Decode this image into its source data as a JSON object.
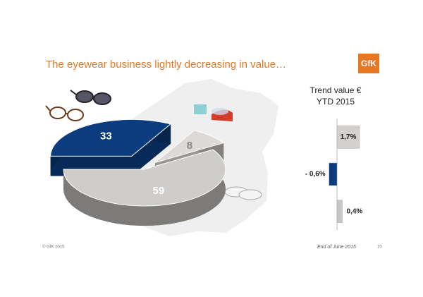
{
  "title": "The eyewear business lightly decreasing in value…",
  "logo": "GfK",
  "footer": {
    "copyright": "© GfK 2015",
    "date": "End of June 2015",
    "page": "10"
  },
  "chart_data": [
    {
      "type": "pie",
      "values": [
        33,
        8,
        59
      ],
      "colors": [
        "#0b3c7d",
        "#dcd9d6",
        "#cfcdcb"
      ]
    },
    {
      "type": "bar",
      "title": "Trend value € YTD 2015",
      "categories": [
        null,
        null,
        null
      ],
      "values": [
        1.7,
        -0.6,
        0.4
      ],
      "value_labels": [
        "1,7%",
        "- 0,6%",
        "0,4%"
      ],
      "colors": [
        "#d3d0cd",
        "#0b3c7d",
        "#c9c7c5"
      ]
    }
  ]
}
